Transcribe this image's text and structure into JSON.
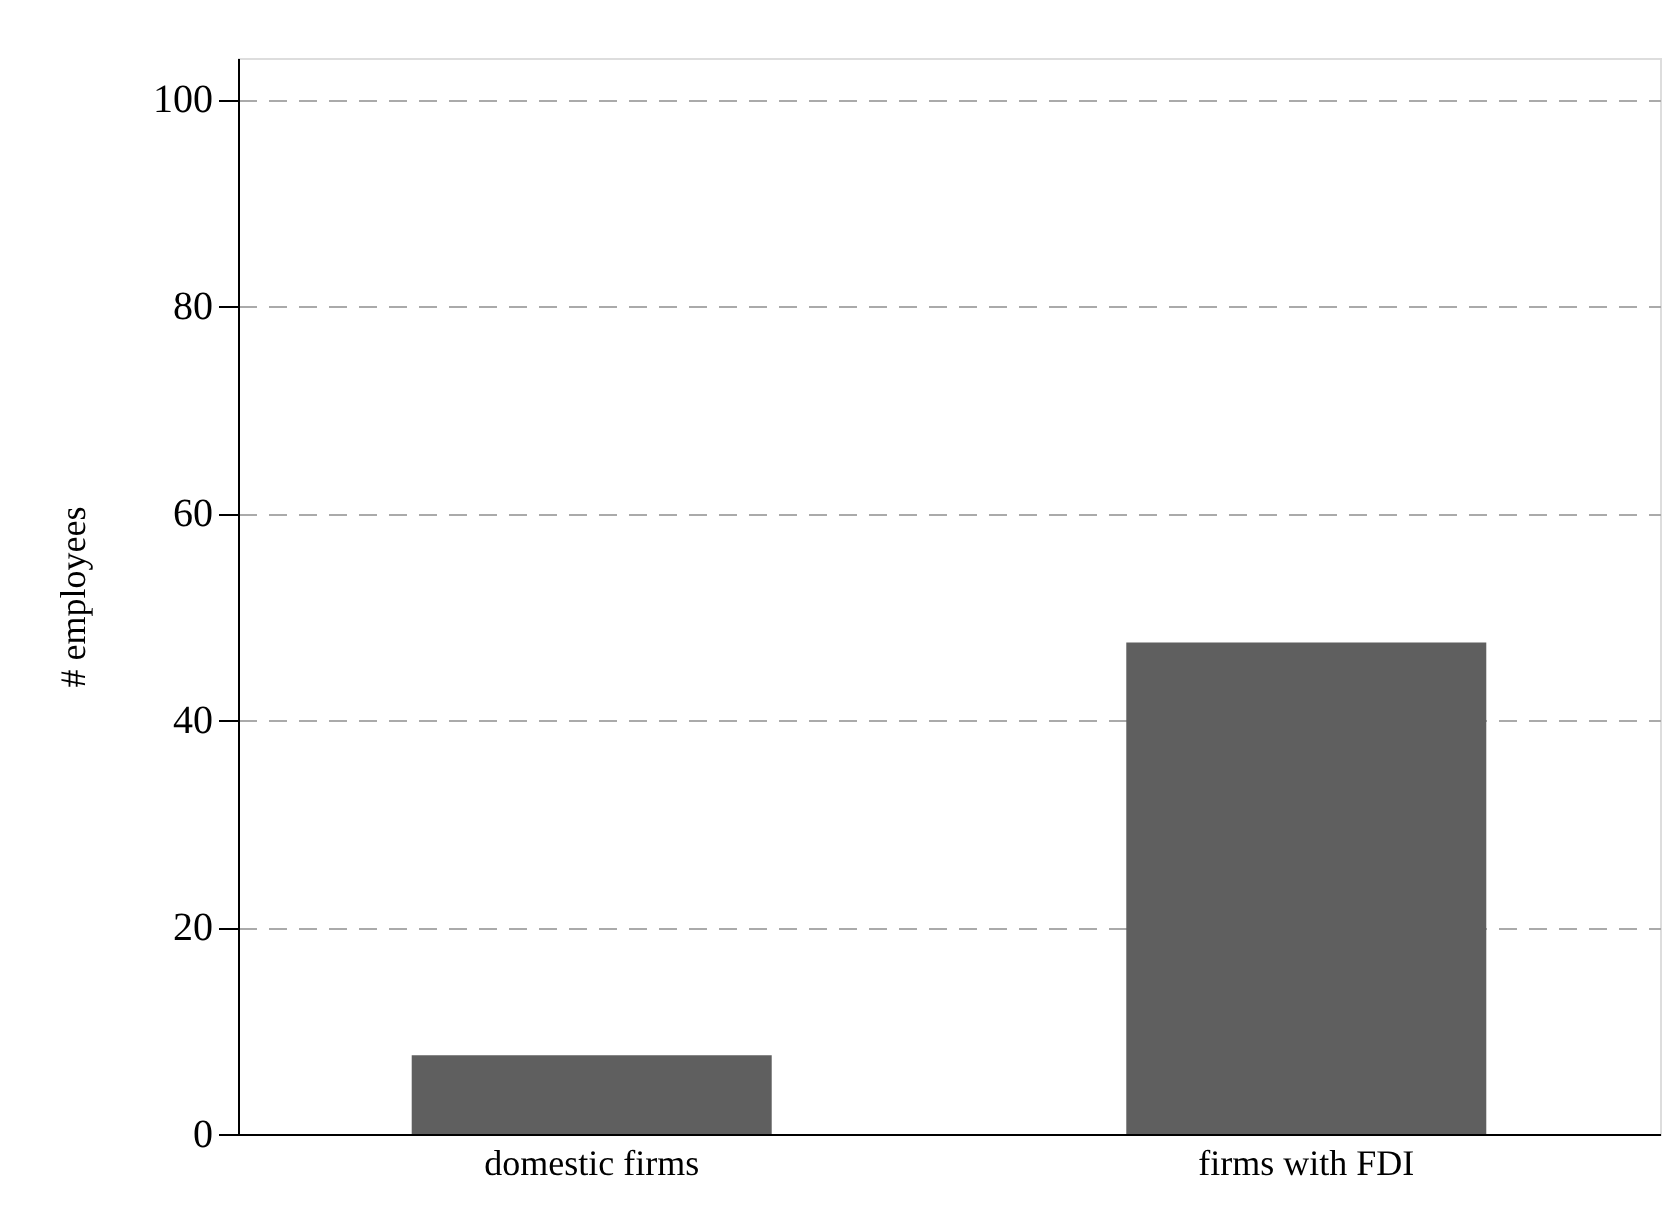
{
  "chart_data": {
    "type": "bar",
    "ylabel": "# employees",
    "categories": [
      "domestic firms",
      "firms with FDI"
    ],
    "values": [
      7.6,
      47.5
    ],
    "color": "#5f5f5f",
    "ylim": [
      0,
      104
    ],
    "yticks": [
      0,
      20,
      40,
      60,
      80,
      100
    ],
    "grid": "y",
    "line_style": "dashed"
  }
}
